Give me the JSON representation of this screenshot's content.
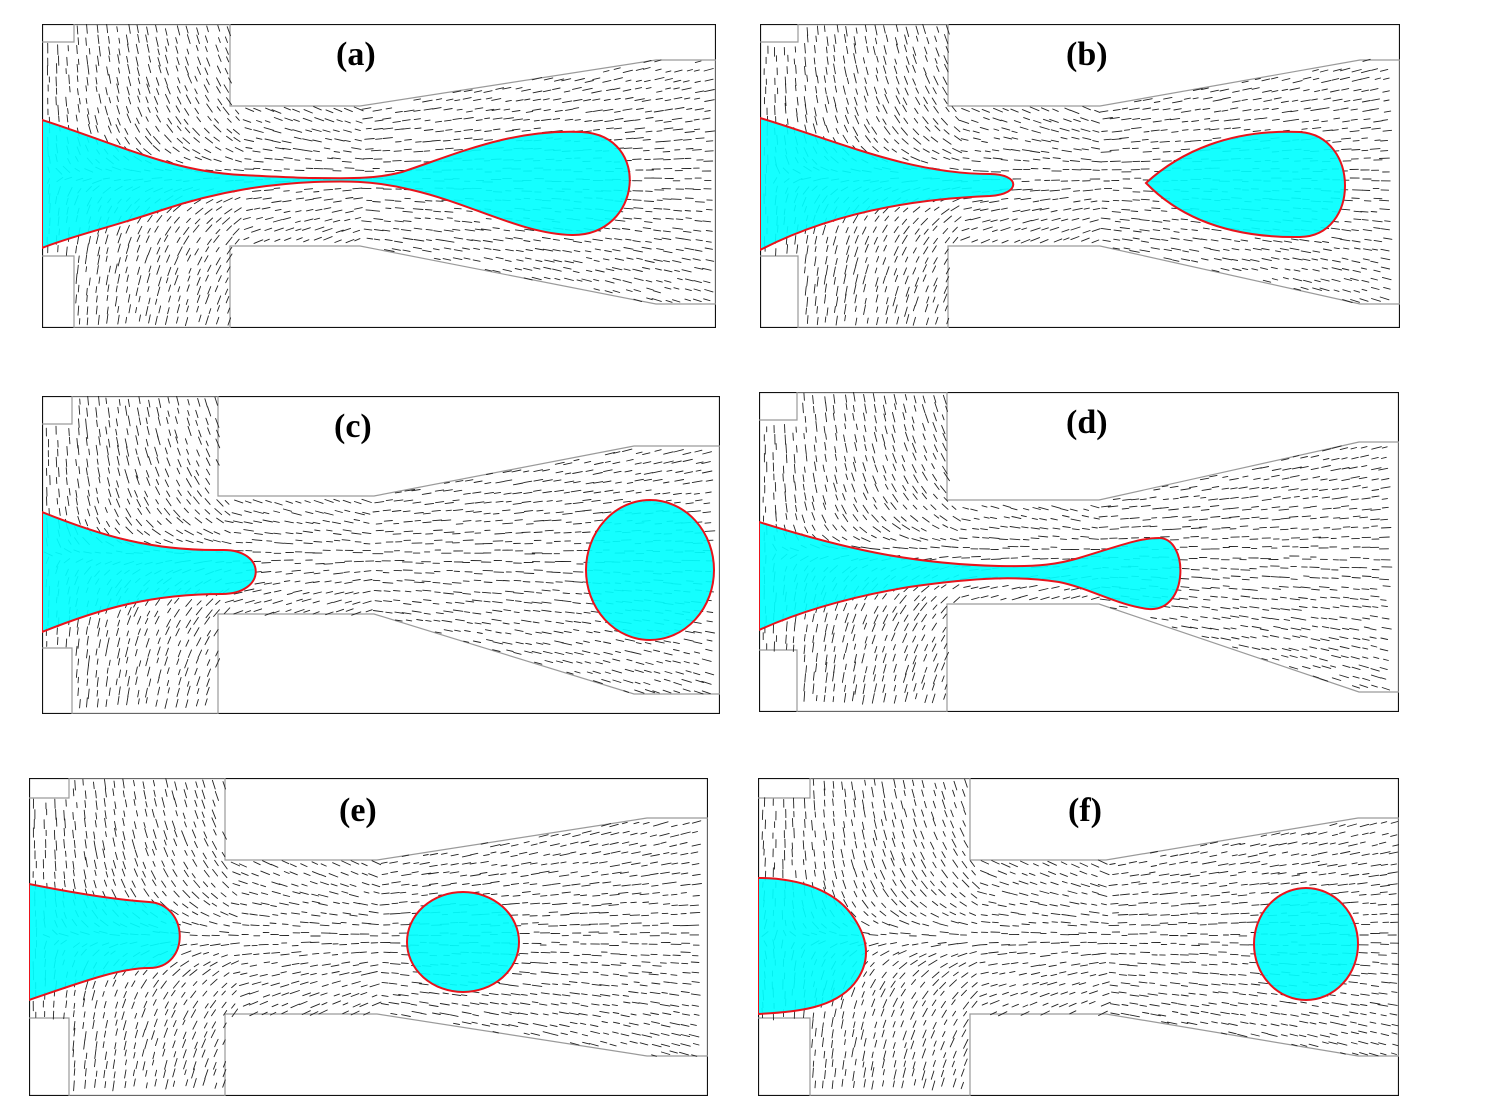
{
  "colors": {
    "fluid": "#00ffff",
    "interface": "#e8141c",
    "channel_wall": "#9a9a9a",
    "frame": "#111111",
    "vectors": "#222222",
    "background": "#ffffff"
  },
  "panels": [
    {
      "id": "a",
      "label": "(a)",
      "state": "thread-connected",
      "icon": "droplet-pinch-off-icon"
    },
    {
      "id": "b",
      "label": "(b)",
      "state": "just-detached",
      "icon": "droplet-pinch-off-icon"
    },
    {
      "id": "c",
      "label": "(c)",
      "state": "detached-round-droplet",
      "icon": "droplet-pinch-off-icon"
    },
    {
      "id": "d",
      "label": "(d)",
      "state": "new-neck-forming",
      "icon": "droplet-pinch-off-icon"
    },
    {
      "id": "e",
      "label": "(e)",
      "state": "detached-droplet",
      "icon": "droplet-pinch-off-icon"
    },
    {
      "id": "f",
      "label": "(f)",
      "state": "detached-droplet-retracted-tip",
      "icon": "droplet-pinch-off-icon"
    }
  ]
}
